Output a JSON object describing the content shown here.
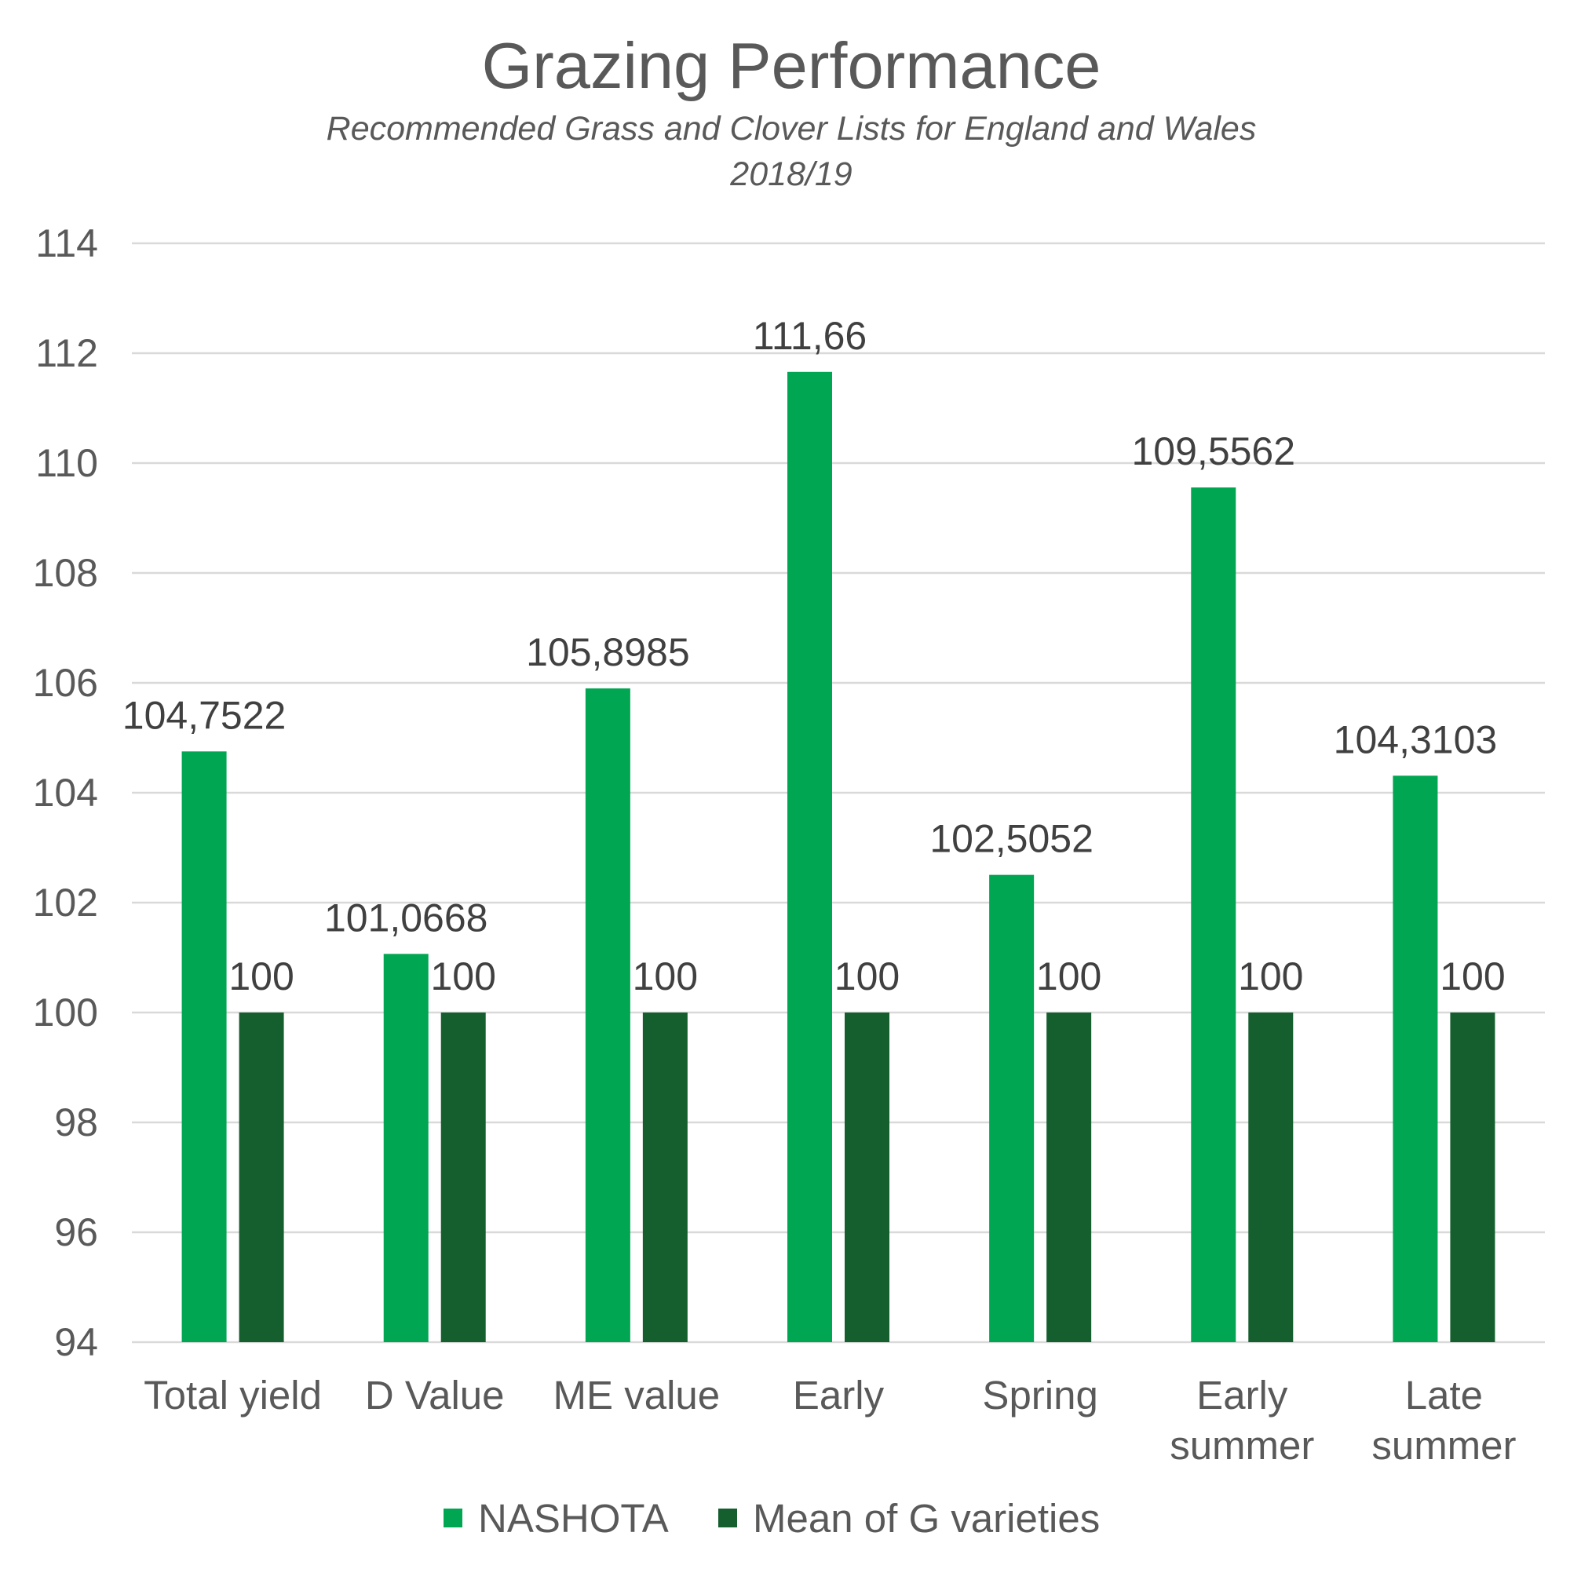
{
  "chart_data": {
    "type": "bar",
    "title": "Grazing Performance",
    "subtitle_lines": [
      "Recommended Grass and Clover Lists for England and Wales",
      "2018/19"
    ],
    "categories": [
      [
        "Total yield"
      ],
      [
        "D Value"
      ],
      [
        "ME value"
      ],
      [
        "Early"
      ],
      [
        "Spring"
      ],
      [
        "Early",
        "summer"
      ],
      [
        "Late",
        "summer"
      ]
    ],
    "series": [
      {
        "name": "NASHOTA",
        "color": "#00a651",
        "values": [
          104.7522,
          101.0668,
          105.8985,
          111.66,
          102.5052,
          109.5562,
          104.3103
        ],
        "labels": [
          "104,7522",
          "101,0668",
          "105,8985",
          "111,66",
          "102,5052",
          "109,5562",
          "104,3103"
        ]
      },
      {
        "name": "Mean of G varieties",
        "color": "#155f2e",
        "values": [
          100,
          100,
          100,
          100,
          100,
          100,
          100
        ],
        "labels": [
          "100",
          "100",
          "100",
          "100",
          "100",
          "100",
          "100"
        ]
      }
    ],
    "ylim": [
      94,
      114
    ],
    "yticks": [
      "94",
      "96",
      "98",
      "100",
      "102",
      "104",
      "106",
      "108",
      "110",
      "112",
      "114"
    ],
    "xlabel": "",
    "ylabel": "",
    "grid": true,
    "legend": "bottom"
  }
}
